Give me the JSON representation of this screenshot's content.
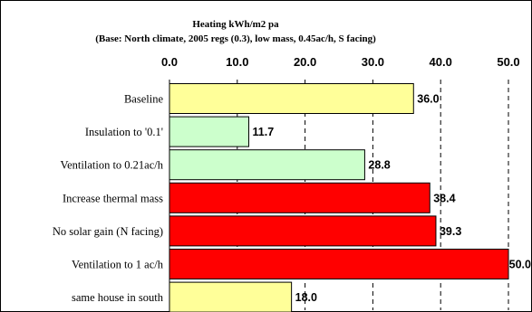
{
  "chart_data": {
    "type": "bar",
    "orientation": "horizontal",
    "title": "Heating kWh/m2 pa",
    "subtitle": "(Base: North climate, 2005 regs (0.3), low mass, 0.45ac/h, S facing)",
    "xlim": [
      0,
      50
    ],
    "x_ticks": [
      "0.0",
      "10.0",
      "20.0",
      "30.0",
      "40.0",
      "50.0"
    ],
    "x_tick_values": [
      0,
      10,
      20,
      30,
      40,
      50
    ],
    "grid": "vertical dashed",
    "categories": [
      "Baseline",
      "Insulation to '0.1'",
      "Ventilation to 0.21ac/h",
      "Increase thermal mass",
      "No solar gain (N facing)",
      "Ventilation to 1 ac/h",
      "same house in south"
    ],
    "values": [
      36.0,
      11.7,
      28.8,
      38.4,
      39.3,
      50.0,
      18.0
    ],
    "value_labels": [
      "36.0",
      "11.7",
      "28.8",
      "38.4",
      "39.3",
      "50.0",
      "18.0"
    ],
    "colors": [
      "#ffff99",
      "#ccffcc",
      "#ccffcc",
      "#ff0000",
      "#ff0000",
      "#ff0000",
      "#ffff99"
    ]
  }
}
